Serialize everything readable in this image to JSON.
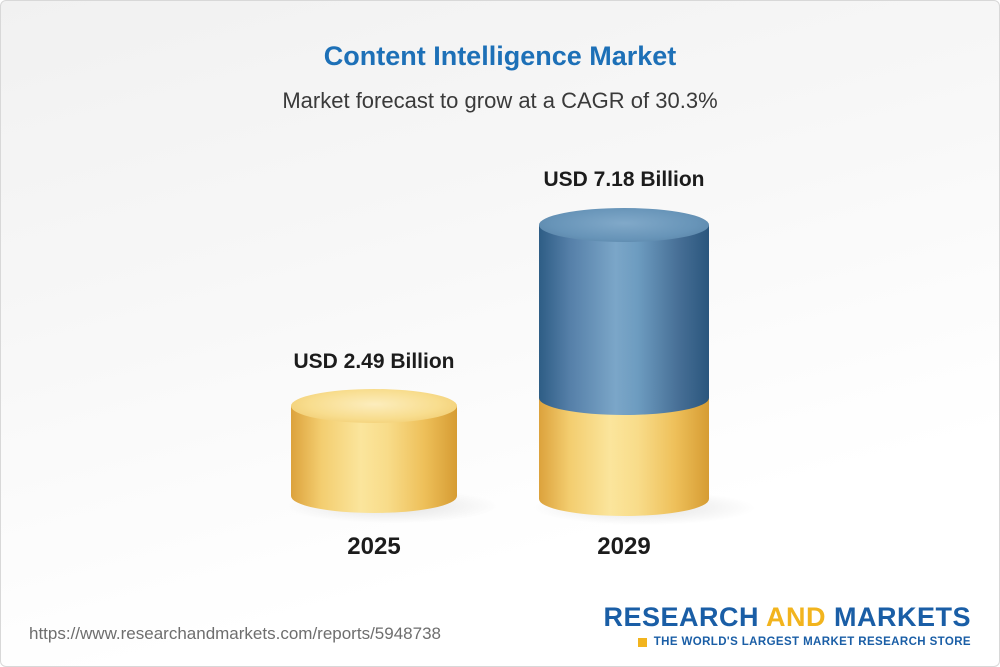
{
  "chart_data": {
    "type": "bar",
    "title": "Content Intelligence Market",
    "subtitle": "Market forecast to grow at a CAGR of 30.3%",
    "categories": [
      "2025",
      "2029"
    ],
    "values": [
      2.49,
      7.18
    ],
    "unit": "USD Billion",
    "value_labels": [
      "USD 2.49 Billion",
      "USD 7.18 Billion"
    ],
    "cagr_percent": 30.3,
    "legend_position": "none",
    "grid": false,
    "axis_labels": "none",
    "colors": {
      "title": "#1d70b7",
      "bar_2025": "#f2cb65",
      "bar_2029_top_segment": "#4b7fab",
      "bar_2029_bottom_segment": "#f2cb65",
      "label_text": "#1c1c1c"
    }
  },
  "footer": {
    "report_url": "https://www.researchandmarkets.com/reports/5948738",
    "logo": {
      "word_research": "RESEARCH",
      "word_and": "AND",
      "word_markets": "MARKETS",
      "tagline": "THE WORLD'S LARGEST MARKET RESEARCH STORE"
    }
  }
}
